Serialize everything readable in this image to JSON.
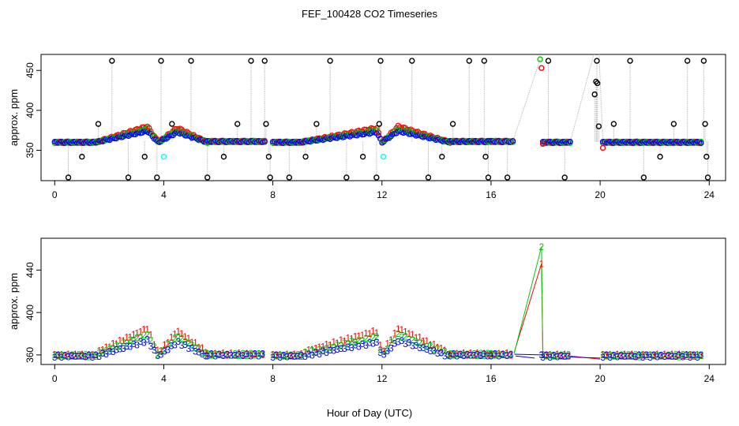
{
  "figure": {
    "title": "FEF_100428  CO2 Timeseries",
    "xlabel": "Hour of Day (UTC)"
  },
  "chart_data": [
    {
      "type": "scatter",
      "title": "FEF_100428  CO2 Timeseries",
      "xlabel": "",
      "ylabel": "approx. ppm",
      "xlim": [
        -0.5,
        24.6
      ],
      "ylim": [
        312,
        470
      ],
      "xticks": [
        0,
        4,
        8,
        12,
        16,
        20,
        24
      ],
      "yticks": [
        350,
        400,
        450
      ],
      "grid": false,
      "marker": "circle",
      "colors": {
        "black": "#000000",
        "red": "#ff0000",
        "green": "#00cd00",
        "blue": "#0000ff",
        "cyan": "#00ffff",
        "connector": "#bebebe"
      },
      "segments": [
        {
          "name": "segment-1",
          "x_start": 0.0,
          "x_end": 5.6,
          "n": 90,
          "base": 360,
          "bumps": [
            {
              "x0": 1.5,
              "x1": 3.8,
              "peak_x": 3.4,
              "amp": 20
            },
            {
              "x0": 3.8,
              "x1": 5.6,
              "peak_x": 4.5,
              "amp": 18
            }
          ]
        },
        {
          "name": "segment-2",
          "x_start": 5.6,
          "x_end": 7.7,
          "n": 30,
          "base": 361,
          "bumps": []
        },
        {
          "name": "segment-3",
          "x_start": 8.0,
          "x_end": 14.5,
          "n": 100,
          "base": 360,
          "bumps": [
            {
              "x0": 9.0,
              "x1": 12.0,
              "peak_x": 11.8,
              "amp": 18
            },
            {
              "x0": 12.0,
              "x1": 14.5,
              "peak_x": 12.6,
              "amp": 20
            }
          ]
        },
        {
          "name": "segment-4",
          "x_start": 14.5,
          "x_end": 16.0,
          "n": 25,
          "base": 361,
          "bumps": []
        },
        {
          "name": "segment-5",
          "x_start": 16.0,
          "x_end": 16.8,
          "n": 12,
          "base": 361,
          "bumps": []
        },
        {
          "name": "segment-6",
          "x_start": 17.9,
          "x_end": 18.9,
          "n": 16,
          "base": 360,
          "bumps": []
        },
        {
          "name": "segment-7",
          "x_start": 20.1,
          "x_end": 23.7,
          "n": 55,
          "base": 360,
          "bumps": []
        }
      ],
      "spikes": [
        {
          "x": 0.5,
          "y": 316
        },
        {
          "x": 1.0,
          "y": 342
        },
        {
          "x": 1.6,
          "y": 383
        },
        {
          "x": 2.1,
          "y": 462
        },
        {
          "x": 2.7,
          "y": 316
        },
        {
          "x": 3.3,
          "y": 342
        },
        {
          "x": 3.75,
          "y": 316
        },
        {
          "x": 3.9,
          "y": 462
        },
        {
          "x": 4.3,
          "y": 383
        },
        {
          "x": 5.0,
          "y": 462
        },
        {
          "x": 5.6,
          "y": 316
        },
        {
          "x": 6.2,
          "y": 342
        },
        {
          "x": 6.7,
          "y": 383
        },
        {
          "x": 7.2,
          "y": 462
        },
        {
          "x": 7.7,
          "y": 462
        },
        {
          "x": 7.75,
          "y": 383
        },
        {
          "x": 7.85,
          "y": 342
        },
        {
          "x": 7.9,
          "y": 316
        },
        {
          "x": 8.6,
          "y": 316
        },
        {
          "x": 9.2,
          "y": 342
        },
        {
          "x": 9.6,
          "y": 383
        },
        {
          "x": 10.1,
          "y": 462
        },
        {
          "x": 10.7,
          "y": 316
        },
        {
          "x": 11.3,
          "y": 342
        },
        {
          "x": 11.8,
          "y": 316
        },
        {
          "x": 11.9,
          "y": 383
        },
        {
          "x": 11.95,
          "y": 462
        },
        {
          "x": 13.1,
          "y": 462
        },
        {
          "x": 13.7,
          "y": 316
        },
        {
          "x": 14.2,
          "y": 342
        },
        {
          "x": 14.6,
          "y": 383
        },
        {
          "x": 15.2,
          "y": 462
        },
        {
          "x": 15.75,
          "y": 462
        },
        {
          "x": 15.8,
          "y": 342
        },
        {
          "x": 15.9,
          "y": 316
        },
        {
          "x": 16.6,
          "y": 316
        },
        {
          "x": 18.1,
          "y": 462
        },
        {
          "x": 18.7,
          "y": 316
        },
        {
          "x": 19.8,
          "y": 420
        },
        {
          "x": 19.85,
          "y": 436
        },
        {
          "x": 19.9,
          "y": 434
        },
        {
          "x": 19.95,
          "y": 380
        },
        {
          "x": 19.88,
          "y": 462
        },
        {
          "x": 20.5,
          "y": 383
        },
        {
          "x": 21.1,
          "y": 462
        },
        {
          "x": 21.6,
          "y": 316
        },
        {
          "x": 22.2,
          "y": 342
        },
        {
          "x": 22.7,
          "y": 383
        },
        {
          "x": 23.2,
          "y": 462
        },
        {
          "x": 23.8,
          "y": 462
        },
        {
          "x": 23.85,
          "y": 383
        },
        {
          "x": 23.9,
          "y": 342
        },
        {
          "x": 23.95,
          "y": 316
        }
      ],
      "extra_points": [
        {
          "x": 17.8,
          "y": 464,
          "color": "green"
        },
        {
          "x": 17.85,
          "y": 453,
          "color": "red"
        },
        {
          "x": 17.9,
          "y": 358,
          "color": "red"
        },
        {
          "x": 20.1,
          "y": 353,
          "color": "red"
        },
        {
          "x": 4.0,
          "y": 342,
          "color": "cyan"
        },
        {
          "x": 12.05,
          "y": 342,
          "color": "cyan"
        }
      ],
      "grey_lines": [
        {
          "from": [
            16.8,
            361
          ],
          "to": [
            17.8,
            464
          ]
        },
        {
          "from": [
            18.9,
            360
          ],
          "to": [
            19.85,
            480
          ]
        },
        {
          "from": [
            20.1,
            360
          ],
          "to": [
            19.95,
            480
          ]
        }
      ]
    },
    {
      "type": "scatter",
      "title": "",
      "xlabel": "Hour of Day (UTC)",
      "ylabel": "approx. ppm",
      "xlim": [
        -0.5,
        24.6
      ],
      "ylim": [
        351,
        470
      ],
      "xticks": [
        0,
        4,
        8,
        12,
        16,
        20,
        24
      ],
      "yticks": [
        360,
        400,
        440
      ],
      "grid": false,
      "marker": "digit",
      "series": [
        {
          "name": "1",
          "label": "1",
          "color": "#ff0000",
          "offset": 5
        },
        {
          "name": "2",
          "label": "2",
          "color": "#00cd00",
          "offset": 2
        },
        {
          "name": "3",
          "label": "3",
          "color": "#0000ff",
          "offset": -1
        }
      ],
      "peak": {
        "x": 17.85,
        "values": {
          "1": 446,
          "2": 462,
          "3": 360
        }
      },
      "gap_lines": [
        {
          "from": [
            16.9,
            359
          ],
          "to": [
            17.6,
            357
          ],
          "color": "#0000ff"
        },
        {
          "from": [
            18.9,
            359
          ],
          "to": [
            20.0,
            356
          ],
          "color": "#ff0000"
        },
        {
          "from": [
            18.9,
            358
          ],
          "to": [
            20.0,
            357
          ],
          "color": "#0000ff"
        }
      ]
    }
  ]
}
